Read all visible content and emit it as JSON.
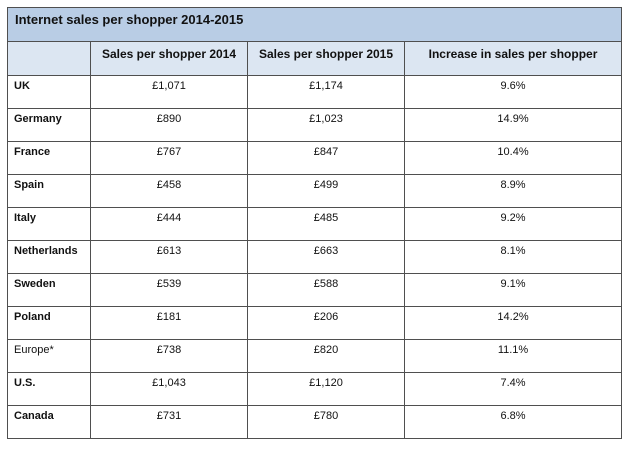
{
  "chart_data": {
    "type": "table",
    "title": "Internet sales per shopper 2014-2015",
    "columns": [
      "",
      "Sales per shopper 2014",
      "Sales per shopper 2015",
      "Increase in sales per shopper"
    ],
    "rows": [
      {
        "country": "UK",
        "bold": true,
        "sales_2014": "£1,071",
        "sales_2015": "£1,174",
        "increase": "9.6%"
      },
      {
        "country": "Germany",
        "bold": true,
        "sales_2014": "£890",
        "sales_2015": "£1,023",
        "increase": "14.9%"
      },
      {
        "country": "France",
        "bold": true,
        "sales_2014": "£767",
        "sales_2015": "£847",
        "increase": "10.4%"
      },
      {
        "country": "Spain",
        "bold": true,
        "sales_2014": "£458",
        "sales_2015": "£499",
        "increase": "8.9%"
      },
      {
        "country": "Italy",
        "bold": true,
        "sales_2014": "£444",
        "sales_2015": "£485",
        "increase": "9.2%"
      },
      {
        "country": "Netherlands",
        "bold": true,
        "sales_2014": "£613",
        "sales_2015": "£663",
        "increase": "8.1%"
      },
      {
        "country": "Sweden",
        "bold": true,
        "sales_2014": "£539",
        "sales_2015": "£588",
        "increase": "9.1%"
      },
      {
        "country": "Poland",
        "bold": true,
        "sales_2014": "£181",
        "sales_2015": "£206",
        "increase": "14.2%"
      },
      {
        "country": "Europe*",
        "bold": false,
        "sales_2014": "£738",
        "sales_2015": "£820",
        "increase": "11.1%"
      },
      {
        "country": "U.S.",
        "bold": true,
        "sales_2014": "£1,043",
        "sales_2015": "£1,120",
        "increase": "7.4%"
      },
      {
        "country": "Canada",
        "bold": true,
        "sales_2014": "£731",
        "sales_2015": "£780",
        "increase": "6.8%"
      }
    ]
  },
  "colors": {
    "title_background": "#b9cde5",
    "header_background": "#dce6f2",
    "border": "#4f4f4f"
  }
}
